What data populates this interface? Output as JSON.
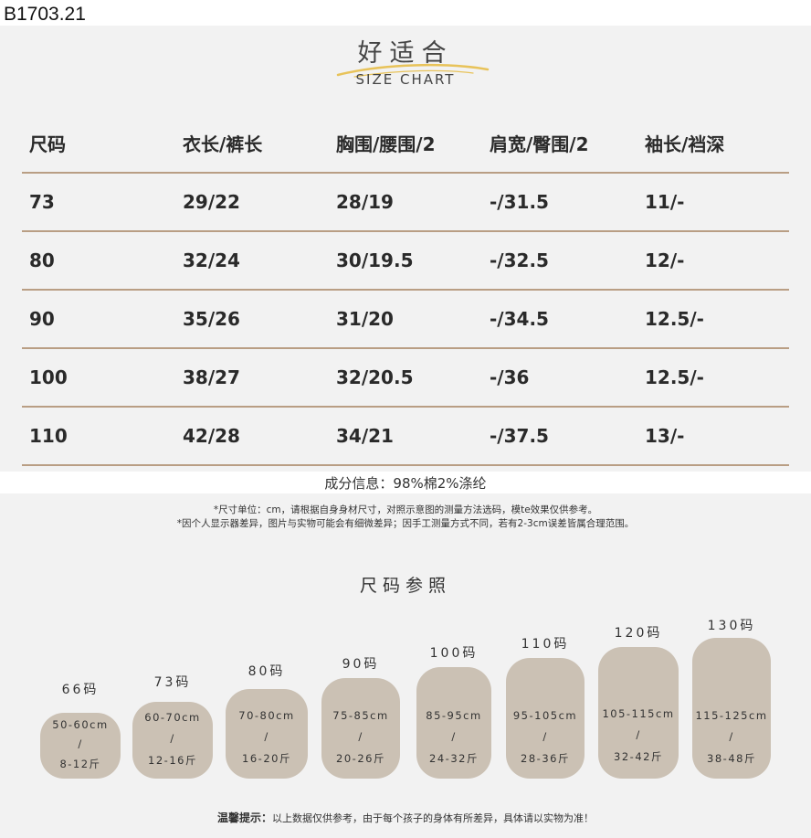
{
  "product_code": "B1703.21",
  "brand": {
    "name": "好适合",
    "subtitle": "SIZE CHART"
  },
  "table": {
    "headers": [
      "尺码",
      "衣长/裤长",
      "胸围/腰围/2",
      "肩宽/臀围/2",
      "袖长/裆深"
    ],
    "rows": [
      [
        "73",
        "29/22",
        "28/19",
        "-/31.5",
        "11/-"
      ],
      [
        "80",
        "32/24",
        "30/19.5",
        "-/32.5",
        "12/-"
      ],
      [
        "90",
        "35/26",
        "31/20",
        "-/34.5",
        "12.5/-"
      ],
      [
        "100",
        "38/27",
        "32/20.5",
        "-/36",
        "12.5/-"
      ],
      [
        "110",
        "42/28",
        "34/21",
        "-/37.5",
        "13/-"
      ]
    ]
  },
  "composition": "成分信息：98%棉2%涤纶",
  "notes": [
    "*尺寸单位：cm，请根据自身身材尺寸，对照示意图的测量方法选码，模te效果仅供参考。",
    "*因个人显示器差异，图片与实物可能会有细微差异；因手工测量方式不同，若有2-3cm误差皆属合理范围。"
  ],
  "reference": {
    "title": "尺码参照",
    "sizes": [
      {
        "label": "66码",
        "height": "50-60cm",
        "sep": "/",
        "weight": "8-12斤"
      },
      {
        "label": "73码",
        "height": "60-70cm",
        "sep": "/",
        "weight": "12-16斤"
      },
      {
        "label": "80码",
        "height": "70-80cm",
        "sep": "/",
        "weight": "16-20斤"
      },
      {
        "label": "90码",
        "height": "75-85cm",
        "sep": "/",
        "weight": "20-26斤"
      },
      {
        "label": "100码",
        "height": "85-95cm",
        "sep": "/",
        "weight": "24-32斤"
      },
      {
        "label": "110码",
        "height": "95-105cm",
        "sep": "/",
        "weight": "28-36斤"
      },
      {
        "label": "120码",
        "height": "105-115cm",
        "sep": "/",
        "weight": "32-42斤"
      },
      {
        "label": "130码",
        "height": "115-125cm",
        "sep": "/",
        "weight": "38-48斤"
      }
    ]
  },
  "tip": {
    "label": "温馨提示：",
    "text": "以上数据仅供参考，由于每个孩子的身体有所差异，具体请以实物为准！"
  },
  "colors": {
    "panel": "#f2f2f2",
    "divider": "#b99e84",
    "blob": "#cbc1b4"
  }
}
